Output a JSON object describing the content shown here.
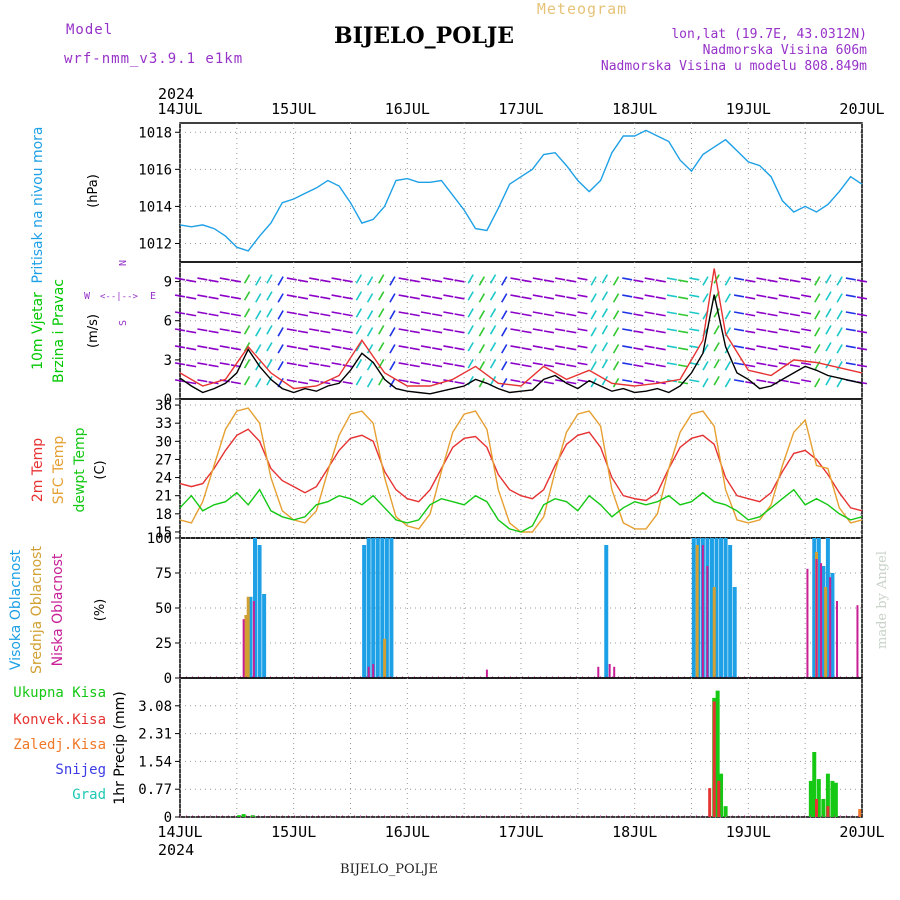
{
  "header": {
    "model_label": "Model",
    "model_name": "wrf-nmm_v3.9.1 e1km",
    "title": "BIJELO_POLJE",
    "product": "Meteogram",
    "coords": "lon,lat (19.7E, 43.0312N)",
    "altitude": "Nadmorska Visina 606m",
    "model_altitude": "Nadmorska Visina u modelu 808.849m",
    "footer": "BIJELO_POLJE",
    "watermark": "made by Angel"
  },
  "colors": {
    "pressure": "#1ea0e6",
    "wind_label": "#00c800",
    "wind_speed_axis": "#000000",
    "barb_purple": "#8c00c8",
    "barb_green": "#32c832",
    "barb_cyan": "#1ec8c8",
    "barb_blue": "#1e32e6",
    "gust": "#e63232",
    "temp_2m": "#e63232",
    "temp_sfc": "#e6a032",
    "temp_dew": "#14c814",
    "cloud_high": "#1ea0e6",
    "cloud_mid": "#d2a032",
    "cloud_low": "#c81e96",
    "precip_total": "#14c814",
    "precip_conv": "#e63232",
    "precip_frozen": "#f07828",
    "snow": "#3c3ce6",
    "graupel": "#1ec8b4",
    "model_purple": "#9632c8"
  },
  "chart_data": [
    {
      "type": "line",
      "panel": "pressure",
      "ylabel_rot": "Pritisak na nivou mora",
      "unit": "(hPa)",
      "x_unit": "day of July 2024 (UTC)",
      "yticks": [
        "1012",
        "1014",
        "1016",
        "1018"
      ],
      "ylim": [
        1011,
        1018.5
      ],
      "series": [
        {
          "name": "Pritisak na nivou mora",
          "x": [
            14.0,
            14.1,
            14.2,
            14.3,
            14.4,
            14.5,
            14.6,
            14.7,
            14.8,
            14.9,
            15.0,
            15.1,
            15.2,
            15.3,
            15.4,
            15.5,
            15.6,
            15.7,
            15.8,
            15.9,
            16.0,
            16.1,
            16.2,
            16.3,
            16.4,
            16.5,
            16.6,
            16.7,
            16.8,
            16.9,
            17.0,
            17.1,
            17.2,
            17.3,
            17.4,
            17.5,
            17.6,
            17.7,
            17.8,
            17.9,
            18.0,
            18.1,
            18.2,
            18.3,
            18.4,
            18.5,
            18.6,
            18.7,
            18.8,
            18.9,
            19.0,
            19.1,
            19.2,
            19.3,
            19.4,
            19.5,
            19.6,
            19.7,
            19.8,
            19.9,
            20.0
          ],
          "values": [
            1013.0,
            1012.9,
            1013.0,
            1012.8,
            1012.4,
            1011.8,
            1011.6,
            1012.4,
            1013.1,
            1014.2,
            1014.4,
            1014.7,
            1015.0,
            1015.4,
            1015.1,
            1014.2,
            1013.1,
            1013.3,
            1014.0,
            1015.4,
            1015.5,
            1015.3,
            1015.3,
            1015.4,
            1014.6,
            1013.8,
            1012.8,
            1012.7,
            1013.9,
            1015.2,
            1015.6,
            1016.0,
            1016.8,
            1016.9,
            1016.2,
            1015.4,
            1014.8,
            1015.4,
            1016.9,
            1017.8,
            1017.8,
            1018.1,
            1017.8,
            1017.5,
            1016.5,
            1015.9,
            1016.8,
            1017.2,
            1017.6,
            1017.0,
            1016.4,
            1016.2,
            1015.6,
            1014.3,
            1013.7,
            1014.0,
            1013.7,
            1014.1,
            1014.8,
            1015.6,
            1015.2
          ]
        }
      ]
    },
    {
      "type": "line",
      "panel": "wind",
      "ylabel_rot1": "10m Vjetar",
      "ylabel_rot2": "Brzina i Pravac",
      "unit": "(m/s)",
      "compass_n": "N",
      "compass_w": "W",
      "compass_e": "E",
      "compass_s": "S",
      "yticks": [
        "0",
        "3",
        "6",
        "9"
      ],
      "ylim": [
        0,
        10.5
      ],
      "series": [
        {
          "name": "10m wind speed",
          "x": [
            14.0,
            14.1,
            14.2,
            14.3,
            14.4,
            14.5,
            14.6,
            14.7,
            14.8,
            14.9,
            15.0,
            15.1,
            15.2,
            15.3,
            15.4,
            15.5,
            15.6,
            15.7,
            15.8,
            15.9,
            16.0,
            16.1,
            16.2,
            16.3,
            16.4,
            16.5,
            16.6,
            16.7,
            16.8,
            16.9,
            17.0,
            17.1,
            17.2,
            17.3,
            17.4,
            17.5,
            17.6,
            17.7,
            17.8,
            17.9,
            18.0,
            18.1,
            18.2,
            18.3,
            18.4,
            18.5,
            18.6,
            18.7,
            18.8,
            18.9,
            19.0,
            19.1,
            19.2,
            19.3,
            19.4,
            19.5,
            19.6,
            19.7,
            19.8,
            19.9,
            20.0
          ],
          "values": [
            1.6,
            1.0,
            0.5,
            0.8,
            1.2,
            2.0,
            3.8,
            2.5,
            1.5,
            0.8,
            0.5,
            0.8,
            0.6,
            1.0,
            1.2,
            2.2,
            3.5,
            2.8,
            1.5,
            0.8,
            0.6,
            0.5,
            0.4,
            0.6,
            0.8,
            1.0,
            1.5,
            1.2,
            0.8,
            0.5,
            0.6,
            0.7,
            1.5,
            1.8,
            1.2,
            0.8,
            1.4,
            1.0,
            0.6,
            0.8,
            0.5,
            0.6,
            0.8,
            0.5,
            1.0,
            2.0,
            3.5,
            8.0,
            4.0,
            2.0,
            1.5,
            0.8,
            1.0,
            1.5,
            2.0,
            2.5,
            2.2,
            1.8,
            1.6,
            1.4,
            1.2
          ]
        },
        {
          "name": "10m wind gust",
          "x": [
            14.0,
            14.2,
            14.4,
            14.6,
            14.8,
            15.0,
            15.2,
            15.4,
            15.6,
            15.8,
            16.0,
            16.2,
            16.4,
            16.6,
            16.8,
            17.0,
            17.2,
            17.4,
            17.6,
            17.8,
            18.0,
            18.2,
            18.4,
            18.6,
            18.7,
            18.8,
            19.0,
            19.2,
            19.4,
            19.6,
            19.8,
            20.0
          ],
          "values": [
            2.0,
            1.0,
            1.5,
            4.0,
            2.0,
            0.8,
            1.0,
            1.8,
            4.5,
            2.0,
            1.0,
            1.0,
            1.5,
            2.5,
            1.2,
            1.0,
            2.5,
            1.5,
            2.2,
            1.2,
            1.0,
            1.2,
            1.5,
            4.5,
            10.0,
            5.0,
            2.2,
            1.8,
            3.0,
            2.8,
            2.4,
            2.0
          ]
        }
      ]
    },
    {
      "type": "line",
      "panel": "temperature",
      "ylabel_rot1": "2m Temp",
      "ylabel_rot2": "SFC Temp",
      "ylabel_rot3": "dewpt Temp",
      "unit": "(C)",
      "yticks": [
        "15",
        "18",
        "21",
        "24",
        "27",
        "30",
        "33",
        "36"
      ],
      "ylim": [
        14,
        37
      ],
      "series": [
        {
          "name": "2m Temp",
          "x": [
            14.0,
            14.1,
            14.2,
            14.3,
            14.4,
            14.5,
            14.6,
            14.7,
            14.8,
            14.9,
            15.0,
            15.1,
            15.2,
            15.3,
            15.4,
            15.5,
            15.6,
            15.7,
            15.8,
            15.9,
            16.0,
            16.1,
            16.2,
            16.3,
            16.4,
            16.5,
            16.6,
            16.7,
            16.8,
            16.9,
            17.0,
            17.1,
            17.2,
            17.3,
            17.4,
            17.5,
            17.6,
            17.7,
            17.8,
            17.9,
            18.0,
            18.1,
            18.2,
            18.3,
            18.4,
            18.5,
            18.6,
            18.7,
            18.8,
            18.9,
            19.0,
            19.1,
            19.2,
            19.3,
            19.4,
            19.5,
            19.6,
            19.7,
            19.8,
            19.9,
            20.0
          ],
          "values": [
            23.0,
            22.5,
            23.0,
            25.5,
            28.5,
            31.0,
            32.0,
            30.0,
            25.5,
            23.5,
            22.5,
            21.5,
            22.5,
            25.5,
            28.5,
            30.5,
            31.0,
            30.0,
            25.0,
            22.0,
            20.5,
            20.0,
            22.0,
            25.5,
            29.0,
            30.5,
            30.8,
            29.0,
            24.5,
            22.0,
            21.0,
            20.5,
            22.0,
            26.0,
            29.5,
            31.0,
            31.5,
            29.0,
            24.0,
            21.0,
            20.5,
            20.2,
            21.5,
            25.5,
            29.0,
            30.5,
            31.0,
            29.5,
            24.0,
            21.0,
            20.5,
            20.0,
            21.5,
            25.0,
            28.0,
            28.5,
            27.0,
            24.5,
            21.5,
            19.0,
            18.5
          ]
        },
        {
          "name": "SFC Temp",
          "x": [
            14.0,
            14.1,
            14.2,
            14.3,
            14.4,
            14.5,
            14.6,
            14.7,
            14.8,
            14.9,
            15.0,
            15.1,
            15.2,
            15.3,
            15.4,
            15.5,
            15.6,
            15.7,
            15.8,
            15.9,
            16.0,
            16.1,
            16.2,
            16.3,
            16.4,
            16.5,
            16.6,
            16.7,
            16.8,
            16.9,
            17.0,
            17.1,
            17.2,
            17.3,
            17.4,
            17.5,
            17.6,
            17.7,
            17.8,
            17.9,
            18.0,
            18.1,
            18.2,
            18.3,
            18.4,
            18.5,
            18.6,
            18.7,
            18.8,
            18.9,
            19.0,
            19.1,
            19.2,
            19.3,
            19.4,
            19.5,
            19.6,
            19.7,
            19.8,
            19.9,
            20.0
          ],
          "values": [
            17.0,
            16.5,
            20.0,
            26.0,
            32.0,
            35.0,
            35.5,
            33.0,
            24.0,
            18.5,
            17.0,
            16.5,
            18.5,
            25.0,
            31.0,
            34.5,
            35.0,
            33.0,
            24.0,
            17.5,
            16.0,
            15.5,
            18.0,
            25.0,
            31.5,
            34.5,
            35.0,
            32.0,
            22.0,
            16.5,
            15.0,
            15.0,
            17.5,
            25.0,
            31.5,
            34.5,
            35.0,
            32.5,
            22.0,
            16.5,
            15.5,
            15.5,
            18.0,
            25.5,
            31.5,
            34.5,
            35.0,
            32.5,
            22.0,
            17.0,
            16.5,
            17.0,
            19.5,
            26.0,
            31.5,
            33.5,
            26.0,
            25.5,
            19.0,
            16.5,
            17.0
          ]
        },
        {
          "name": "dewpt Temp",
          "x": [
            14.0,
            14.1,
            14.2,
            14.3,
            14.4,
            14.5,
            14.6,
            14.7,
            14.8,
            14.9,
            15.0,
            15.1,
            15.2,
            15.3,
            15.4,
            15.5,
            15.6,
            15.7,
            15.8,
            15.9,
            16.0,
            16.1,
            16.2,
            16.3,
            16.4,
            16.5,
            16.6,
            16.7,
            16.8,
            16.9,
            17.0,
            17.1,
            17.2,
            17.3,
            17.4,
            17.5,
            17.6,
            17.7,
            17.8,
            17.9,
            18.0,
            18.1,
            18.2,
            18.3,
            18.4,
            18.5,
            18.6,
            18.7,
            18.8,
            18.9,
            19.0,
            19.1,
            19.2,
            19.3,
            19.4,
            19.5,
            19.6,
            19.7,
            19.8,
            19.9,
            20.0
          ],
          "values": [
            19.0,
            21.0,
            18.5,
            19.5,
            20.0,
            21.5,
            19.5,
            22.0,
            18.5,
            17.5,
            17.0,
            17.5,
            19.5,
            20.0,
            21.0,
            20.5,
            19.5,
            21.0,
            19.0,
            17.0,
            16.5,
            17.0,
            19.5,
            20.5,
            20.0,
            19.5,
            21.0,
            20.0,
            17.0,
            15.5,
            15.0,
            16.0,
            19.5,
            20.5,
            20.0,
            18.5,
            21.0,
            19.5,
            17.5,
            19.0,
            20.0,
            19.5,
            20.0,
            21.0,
            19.5,
            20.0,
            21.5,
            20.0,
            19.5,
            18.5,
            17.0,
            17.5,
            19.0,
            20.5,
            22.0,
            19.5,
            20.5,
            19.5,
            18.0,
            17.0,
            17.5
          ]
        }
      ]
    },
    {
      "type": "bar",
      "panel": "cloud",
      "ylabel_rot1": "Visoka Oblacnost",
      "ylabel_rot2": "Srednja Oblacnost",
      "ylabel_rot3": "Niska Oblacnost",
      "unit": "(%)",
      "yticks": [
        "0",
        "25",
        "50",
        "75",
        "100"
      ],
      "ylim": [
        0,
        100
      ],
      "series": [
        {
          "name": "Visoka Oblacnost",
          "x": [
            14.62,
            14.66,
            14.7,
            14.74,
            15.62,
            15.66,
            15.7,
            15.74,
            15.78,
            15.82,
            15.86,
            17.75,
            18.52,
            18.56,
            18.6,
            18.64,
            18.68,
            18.72,
            18.76,
            18.8,
            18.84,
            18.88,
            19.58,
            19.62,
            19.66,
            19.7,
            19.74
          ],
          "values": [
            58,
            100,
            95,
            60,
            95,
            100,
            100,
            100,
            100,
            100,
            100,
            95,
            100,
            100,
            100,
            100,
            100,
            100,
            100,
            100,
            95,
            65,
            100,
            100,
            80,
            100,
            75
          ]
        },
        {
          "name": "Srednja Oblacnost",
          "x": [
            14.58,
            14.6,
            15.8,
            18.55,
            18.7,
            19.6,
            19.68
          ],
          "values": [
            45,
            58,
            28,
            95,
            65,
            90,
            65
          ]
        },
        {
          "name": "Niska Oblacnost",
          "x": [
            14.56,
            14.65,
            15.66,
            15.7,
            16.7,
            17.68,
            17.78,
            17.82,
            18.6,
            18.64,
            19.52,
            19.6,
            19.64,
            19.72,
            19.78,
            19.96
          ],
          "values": [
            42,
            55,
            8,
            10,
            6,
            8,
            10,
            8,
            95,
            80,
            78,
            85,
            82,
            72,
            55,
            52
          ]
        }
      ]
    },
    {
      "type": "bar",
      "panel": "precip",
      "ylabel_rot": "1hr Precip (mm)",
      "yticks": [
        "0",
        "0.77",
        "1.54",
        "2.31",
        "3.08"
      ],
      "ylim": [
        0,
        3.85
      ],
      "legend": [
        "Ukupna Kisa",
        "Konvek.Kisa",
        "Zaledj.Kisa",
        "Snijeg",
        "Grad"
      ],
      "series": [
        {
          "name": "Ukupna Kisa",
          "x": [
            14.52,
            14.56,
            14.64,
            18.7,
            18.73,
            18.76,
            18.8,
            19.55,
            19.58,
            19.62,
            19.66,
            19.7,
            19.74,
            19.77
          ],
          "values": [
            0.05,
            0.08,
            0.05,
            3.3,
            3.5,
            1.2,
            0.3,
            1.0,
            1.8,
            1.05,
            0.5,
            1.2,
            1.0,
            0.95
          ]
        },
        {
          "name": "Konvek.Kisa",
          "x": [
            18.66,
            18.7,
            18.74,
            19.6,
            19.7
          ],
          "values": [
            0.8,
            3.2,
            1.0,
            0.5,
            0.3
          ]
        },
        {
          "name": "Zaledj.Kisa",
          "x": [
            19.98
          ],
          "values": [
            0.22
          ]
        }
      ]
    }
  ],
  "xaxis": {
    "year": "2024",
    "ticks": [
      "14JUL",
      "15JUL",
      "16JUL",
      "17JUL",
      "18JUL",
      "19JUL",
      "20JUL"
    ]
  }
}
